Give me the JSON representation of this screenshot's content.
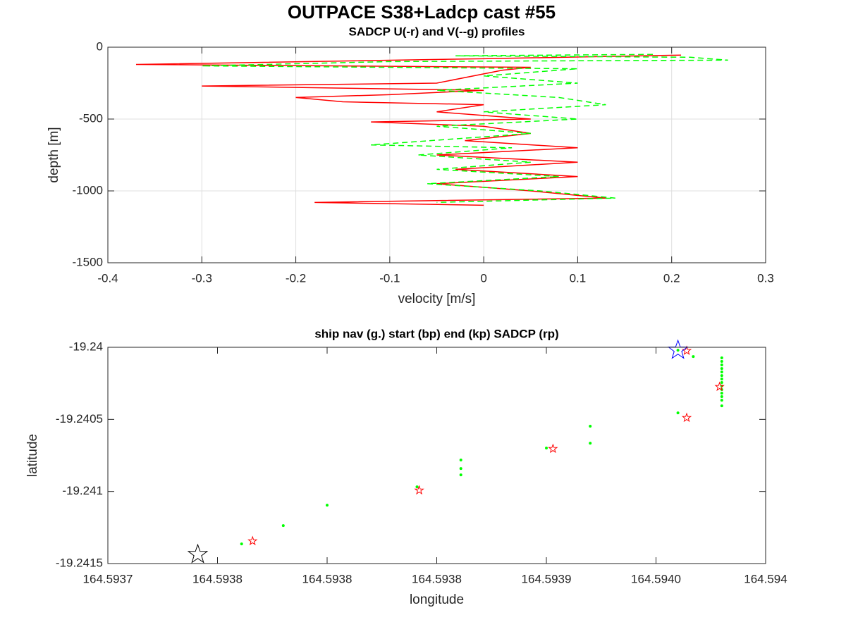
{
  "title": "OUTPACE S38+Ladcp cast #55",
  "chart_data": [
    {
      "type": "line",
      "title": "SADCP U(-r) and V(--g) profiles",
      "x_label": "velocity [m/s]",
      "y_label": "depth [m]",
      "xlim": [
        -0.4,
        0.3
      ],
      "xticks": [
        -0.4,
        -0.3,
        -0.2,
        -0.1,
        0,
        0.1,
        0.2,
        0.3
      ],
      "ylim": [
        -1500,
        0
      ],
      "yticks": [
        -1500,
        -1000,
        -500,
        0
      ],
      "grid": true,
      "series": [
        {
          "color": "#ff0000",
          "dashed": false,
          "x": [
            0.21,
            0.0,
            -0.37,
            0.05,
            0.02,
            -0.05,
            -0.3,
            0.0,
            -0.1,
            -0.2,
            -0.15,
            0.0,
            -0.05,
            0.05,
            -0.12,
            0.0,
            0.05,
            -0.02,
            0.1,
            -0.05,
            0.1,
            -0.03,
            0.1,
            -0.05,
            0.05,
            0.13,
            -0.18,
            0.0
          ],
          "values": [
            -55,
            -80,
            -120,
            -140,
            -160,
            -250,
            -270,
            -300,
            -330,
            -350,
            -380,
            -400,
            -450,
            -500,
            -520,
            -550,
            -600,
            -650,
            -700,
            -750,
            -800,
            -850,
            -900,
            -950,
            -1000,
            -1050,
            -1080,
            -1100
          ]
        },
        {
          "color": "#00ff00",
          "dashed": true,
          "x": [
            0.18,
            -0.03,
            0.22,
            0.26,
            -0.1,
            -0.3,
            0.1,
            0.0,
            0.1,
            -0.05,
            0.08,
            0.13,
            0.0,
            0.1,
            -0.05,
            0.05,
            -0.12,
            0.03,
            -0.07,
            0.05,
            -0.05,
            0.08,
            -0.06,
            0.06,
            0.14,
            -0.05
          ],
          "values": [
            -50,
            -60,
            -70,
            -90,
            -100,
            -130,
            -150,
            -200,
            -250,
            -300,
            -350,
            -400,
            -450,
            -500,
            -550,
            -600,
            -680,
            -700,
            -750,
            -800,
            -850,
            -900,
            -950,
            -1000,
            -1050,
            -1080
          ]
        }
      ]
    },
    {
      "type": "scatter",
      "title": "ship nav (g.) start (bp) end (kp) SADCP (rp)",
      "x_label": "longitude",
      "y_label": "latitude",
      "xlim": [
        164.5937,
        164.594
      ],
      "xticks": [
        164.5937,
        {
          "value": 164.59375,
          "label": "164.5938"
        },
        {
          "value": 164.5938,
          "label": "164.5938"
        },
        {
          "value": 164.59385,
          "label": "164.5938"
        },
        {
          "value": 164.5939,
          "label": "164.5939"
        },
        {
          "value": 164.59395,
          "label": "164.5940"
        },
        164.594
      ],
      "ylim": [
        -19.2415,
        -19.24
      ],
      "yticks": [
        -19.2415,
        -19.241,
        -19.2405,
        -19.24
      ],
      "grid": false,
      "series": [
        {
          "color": "#00ff00",
          "marker": "dot",
          "x": [
            164.593761,
            164.59378,
            164.5938,
            164.593841,
            164.593861,
            164.593861,
            164.593861,
            164.5939,
            164.59392,
            164.59392,
            164.59396,
            164.59396,
            164.593967,
            164.59398,
            164.59398,
            164.59398,
            164.59398,
            164.59398,
            164.59398,
            164.59398,
            164.59398,
            164.59398,
            164.59398,
            164.59398,
            164.59398,
            164.59398,
            164.59398
          ],
          "values": [
            -19.241364,
            -19.241237,
            -19.241095,
            -19.240968,
            -19.240782,
            -19.240841,
            -19.240885,
            -19.240699,
            -19.240547,
            -19.240665,
            -19.240455,
            -19.24002,
            -19.240064,
            -19.240073,
            -19.240098,
            -19.240122,
            -19.240147,
            -19.240171,
            -19.240196,
            -19.24022,
            -19.240244,
            -19.240269,
            -19.240293,
            -19.240318,
            -19.240342,
            -19.240367,
            -19.240406
          ]
        },
        {
          "color": "#ff0000",
          "marker": "star",
          "x": [
            164.593766,
            164.593842,
            164.593903,
            164.593964,
            164.593979,
            164.593964
          ],
          "values": [
            -19.241344,
            -19.240992,
            -19.240704,
            -19.240489,
            -19.240274,
            -19.240024
          ]
        },
        {
          "color": "#0000ff",
          "marker": "bigstar",
          "x": [
            164.59396
          ],
          "values": [
            -19.24002
          ]
        },
        {
          "color": "#000000",
          "marker": "bigstar",
          "x": [
            164.593741
          ],
          "values": [
            -19.241437
          ]
        }
      ]
    }
  ]
}
